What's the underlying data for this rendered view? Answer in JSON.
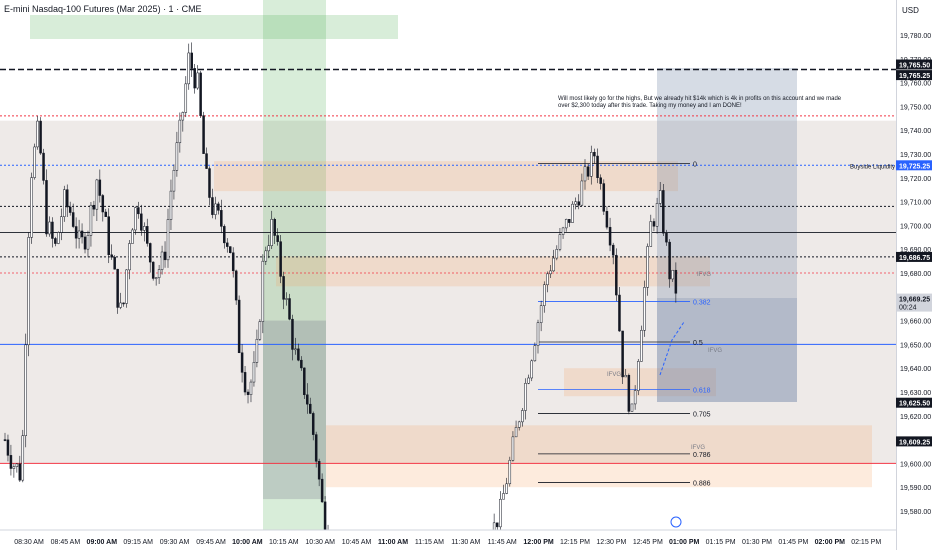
{
  "header": {
    "title": "E-mini Nasdaq-100 Futures (Mar 2025) · 1 · CME"
  },
  "price_scale": {
    "currency": "USD",
    "ticks": [
      "19,780.00",
      "19,770.00",
      "19,760.00",
      "19,750.00",
      "19,740.00",
      "19,730.00",
      "19,720.00",
      "19,710.00",
      "19,700.00",
      "19,690.00",
      "19,680.00",
      "19,670.00",
      "19,660.00",
      "19,650.00",
      "19,640.00",
      "19,630.00",
      "19,620.00",
      "19,610.00",
      "19,600.00",
      "19,590.00",
      "19,580.00"
    ],
    "labels": [
      {
        "text": "19,765.50",
        "bg": "#131722",
        "fg": "#ffffff"
      },
      {
        "text": "19,765.25",
        "bg": "#131722",
        "fg": "#ffffff"
      },
      {
        "text": "19,725.25",
        "bg": "#2962ff",
        "fg": "#ffffff"
      },
      {
        "text": "19,686.75",
        "bg": "#131722",
        "fg": "#ffffff"
      },
      {
        "text": "19,669.25",
        "bg": "#d1d4dc",
        "fg": "#131722",
        "sub": "00:24"
      },
      {
        "text": "19,625.50",
        "bg": "#131722",
        "fg": "#ffffff"
      },
      {
        "text": "19,609.25",
        "bg": "#131722",
        "fg": "#ffffff"
      }
    ]
  },
  "time_axis": {
    "ticks": [
      "08:30 AM",
      "08:45 AM",
      "09:00 AM",
      "09:15 AM",
      "09:30 AM",
      "09:45 AM",
      "10:00 AM",
      "10:15 AM",
      "10:30 AM",
      "10:45 AM",
      "11:00 AM",
      "11:15 AM",
      "11:30 AM",
      "11:45 AM",
      "12:00 PM",
      "12:15 PM",
      "12:30 PM",
      "12:45 PM",
      "01:00 PM",
      "01:15 PM",
      "01:30 PM",
      "01:45 PM",
      "02:00 PM",
      "02:15 PM"
    ],
    "bold": [
      "09:00 AM",
      "10:00 AM",
      "11:00 AM",
      "12:00 PM",
      "01:00 PM",
      "02:00 PM"
    ]
  },
  "annotations": {
    "note": "Will most likely go for the highs, But we already hit $14k which is 4k in profits on this account and we made over $2,300 today after this trade.  Taking my money and I am DONE!",
    "buyside": "Buyside Liquidity",
    "ifvg": "IFVG",
    "fib": [
      "0",
      "0.382",
      "0.5",
      "0.618",
      "0.705",
      "0.786",
      "0.886"
    ]
  },
  "colors": {
    "up": "#131722",
    "down": "#131722",
    "red": "#f23645",
    "blue": "#2962ff",
    "green": "#4caf50"
  }
}
